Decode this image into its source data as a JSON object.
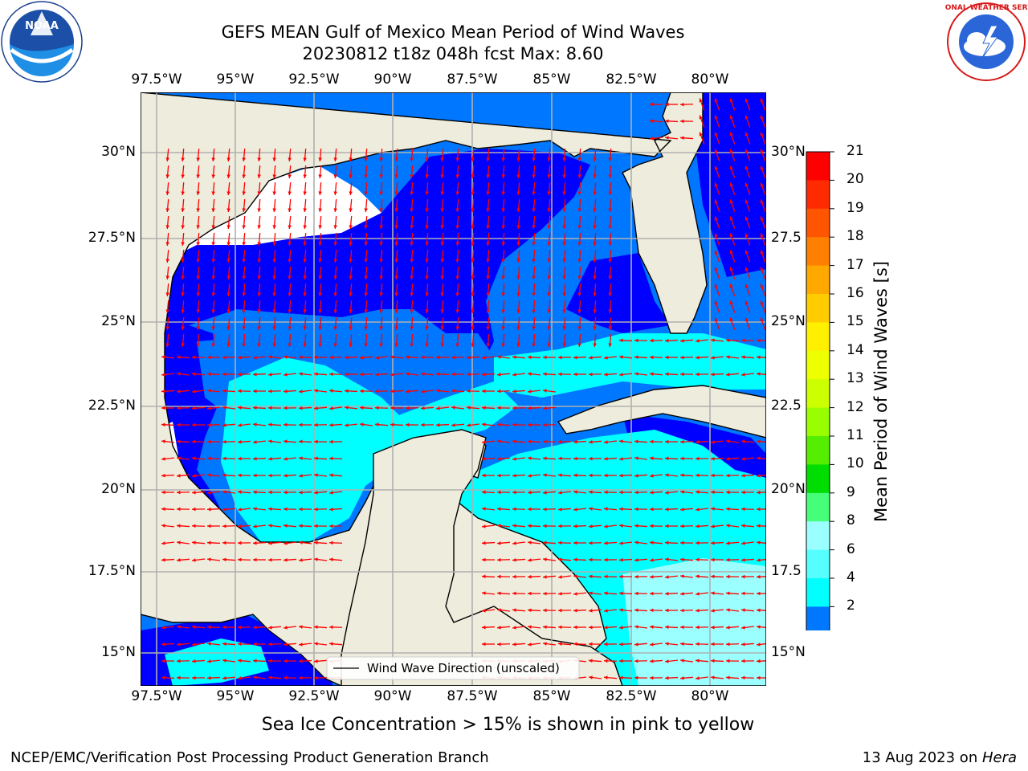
{
  "header": {
    "title_line1": "GEFS MEAN Gulf of Mexico Mean Period of Wind Waves",
    "title_line2": "20230812 t18z 048h fcst   Max: 8.60"
  },
  "logos": {
    "noaa_text": "NOAA",
    "noaa_ring": "NATIONAL OCEANIC AND ATMOSPHERIC ADMINISTRATION · U.S. DEPARTMENT OF COMMERCE",
    "nws_ring": "NATIONAL WEATHER SERVICE"
  },
  "map": {
    "lon_labels": [
      "97.5°W",
      "95°W",
      "92.5°W",
      "90°W",
      "87.5°W",
      "85°W",
      "82.5°W",
      "80°W"
    ],
    "lat_labels": [
      "30°N",
      "27.5°N",
      "25°N",
      "22.5°N",
      "20°N",
      "17.5°N",
      "15°N"
    ],
    "lat_labels_right": [
      "30°N",
      "27.5",
      "25°N",
      "22.5",
      "20°N",
      "17.5",
      "15°N"
    ],
    "legend_label": "Wind Wave Direction (unscaled)",
    "colors": {
      "land": "#eeecdc",
      "ocean_deep": "#0000ff",
      "ocean_mid": "#0077ff",
      "ocean_light": "#00ffff",
      "ocean_pale": "#9bffff",
      "arrow": "#ff0000"
    }
  },
  "colorbar": {
    "label": "Mean Period of Wind Waves [s]",
    "ticks": [
      "21",
      "20",
      "19",
      "18",
      "17",
      "16",
      "15",
      "14",
      "13",
      "12",
      "11",
      "10",
      "9",
      "8",
      "6",
      "4",
      "2"
    ],
    "colors": [
      "#ff0000",
      "#ff2a00",
      "#ff5500",
      "#ff7f00",
      "#ffa800",
      "#ffcc00",
      "#fff000",
      "#eeff00",
      "#ccff00",
      "#99ff00",
      "#55ee00",
      "#00dd00",
      "#44ff77",
      "#9bffff",
      "#55ffff",
      "#00ffff",
      "#0077ff"
    ],
    "under_color": "#0000ff"
  },
  "footer": {
    "sea_ice_note": "Sea Ice Concentration > 15% is shown in pink to yellow",
    "left": "NCEP/EMC/Verification Post Processing Product Generation Branch",
    "right_date": "13 Aug 2023 on ",
    "right_machine": "Hera"
  }
}
